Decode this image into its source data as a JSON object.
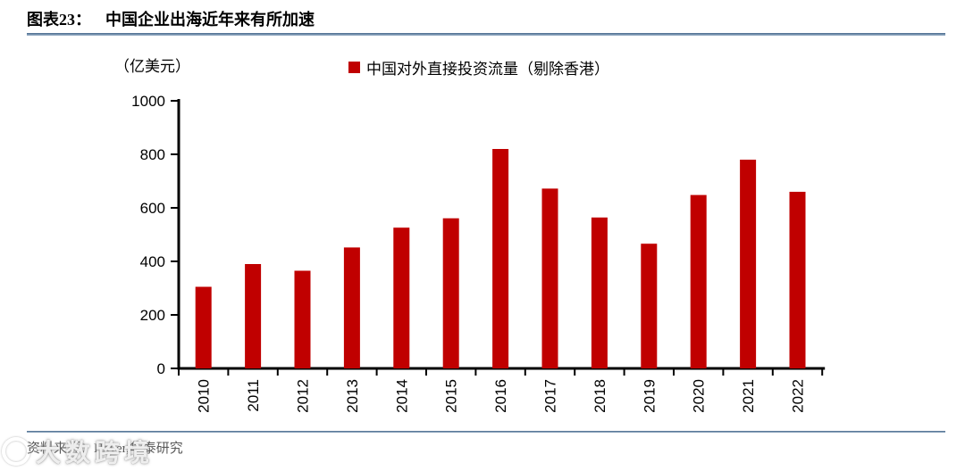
{
  "header": {
    "label": "图表23：",
    "title": "中国企业出海近年来有所加速"
  },
  "chart_data": {
    "type": "bar",
    "title": "中国企业出海近年来有所加速",
    "unit_label": "（亿美元）",
    "legend": "中国对外直接投资流量（剔除香港）",
    "legend_position": "top",
    "categories": [
      "2010",
      "2011",
      "2012",
      "2013",
      "2014",
      "2015",
      "2016",
      "2017",
      "2018",
      "2019",
      "2020",
      "2021",
      "2022"
    ],
    "values": [
      305,
      390,
      365,
      452,
      526,
      561,
      820,
      672,
      564,
      466,
      648,
      780,
      660
    ],
    "xlabel": "",
    "ylabel": "（亿美元）",
    "ylim": [
      0,
      1000
    ],
    "yticks": [
      0,
      200,
      400,
      600,
      800,
      1000
    ],
    "x_label_rotation": -90,
    "grid": false,
    "bar_color": "#c00000"
  },
  "footer": {
    "source": "资料来源：Haver,华泰研究"
  },
  "watermark": {
    "text": "大数跨境"
  },
  "colors": {
    "bar": "#c00000",
    "rule": "#46688c",
    "axis": "#000000",
    "source_text": "#595959"
  }
}
